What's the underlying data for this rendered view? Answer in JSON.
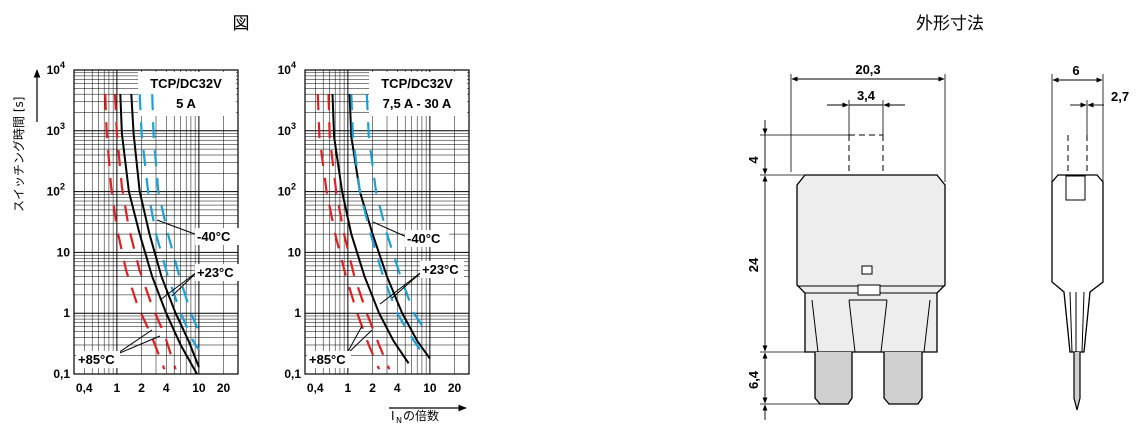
{
  "titles": {
    "left": "図",
    "right": "外形寸法"
  },
  "y_axis_label": "スイッチング時間 [s]",
  "x_axis_label": "の倍数",
  "x_axis_symbol": "I",
  "x_axis_subscript": "N",
  "colors": {
    "cold": "#1aa0d8",
    "warm": "#e02020",
    "normal": "#000000",
    "grid": "#000000"
  },
  "chart_data": [
    {
      "type": "line",
      "title": "TCP/DC32V",
      "subtitle": "5 A",
      "x_scale": "log",
      "y_scale": "log",
      "xlim": [
        0.3,
        30
      ],
      "ylim": [
        0.1,
        10000
      ],
      "x_ticks": [
        "0,4",
        "1",
        "2",
        "4",
        "10",
        "20"
      ],
      "x_tick_values": [
        0.4,
        1,
        2,
        4,
        10,
        20
      ],
      "y_ticks": [
        "0,1",
        "1",
        "10",
        "10^2",
        "10^3",
        "10^4"
      ],
      "y_tick_values": [
        0.1,
        1,
        10,
        100,
        1000,
        10000
      ],
      "annotations": [
        "-40°C",
        "+23°C",
        "+85°C"
      ],
      "series": [
        {
          "name": "+85°C",
          "style": "dashed",
          "color": "#e02020",
          "x": [
            0.72,
            0.75,
            0.85,
            1.0,
            1.3,
            1.8,
            2.6,
            3.8
          ],
          "y": [
            4000,
            1000,
            120,
            25,
            5,
            1.3,
            0.45,
            0.12
          ]
        },
        {
          "name": "+85°C",
          "style": "dashed",
          "color": "#e02020",
          "x": [
            0.95,
            1.0,
            1.15,
            1.4,
            1.9,
            2.7,
            3.8,
            5.2
          ],
          "y": [
            4000,
            900,
            120,
            25,
            5,
            1.3,
            0.45,
            0.12
          ]
        },
        {
          "name": "+23°C",
          "style": "solid",
          "color": "#000000",
          "x": [
            1.1,
            1.15,
            1.4,
            1.9,
            2.7,
            4.0,
            6.0,
            9.5
          ],
          "y": [
            4000,
            900,
            100,
            20,
            4,
            1.0,
            0.3,
            0.1
          ]
        },
        {
          "name": "+23°C",
          "style": "solid",
          "color": "#000000",
          "x": [
            1.5,
            1.6,
            1.9,
            2.5,
            3.5,
            5.2,
            7.5,
            10
          ],
          "y": [
            4000,
            900,
            100,
            20,
            4,
            1.0,
            0.35,
            0.13
          ]
        },
        {
          "name": "-40°C",
          "style": "dashed",
          "color": "#1aa0d8",
          "x": [
            1.9,
            2.0,
            2.4,
            3.0,
            4.2,
            6.0,
            8.5,
            10
          ],
          "y": [
            4000,
            900,
            100,
            20,
            4,
            1.0,
            0.35,
            0.25
          ]
        },
        {
          "name": "-40°C",
          "style": "dashed",
          "color": "#1aa0d8",
          "x": [
            2.7,
            2.8,
            3.2,
            4.2,
            5.8,
            8.0,
            10
          ],
          "y": [
            4000,
            900,
            100,
            20,
            4,
            1.0,
            0.5
          ]
        }
      ]
    },
    {
      "type": "line",
      "title": "TCP/DC32V",
      "subtitle": "7,5 A - 30 A",
      "x_scale": "log",
      "y_scale": "log",
      "xlim": [
        0.3,
        30
      ],
      "ylim": [
        0.1,
        10000
      ],
      "x_ticks": [
        "0,4",
        "1",
        "2",
        "4",
        "10",
        "20"
      ],
      "x_tick_values": [
        0.4,
        1,
        2,
        4,
        10,
        20
      ],
      "y_ticks": [
        "0,1",
        "1",
        "10",
        "10^2",
        "10^3",
        "10^4"
      ],
      "y_tick_values": [
        0.1,
        1,
        10,
        100,
        1000,
        10000
      ],
      "annotations": [
        "-40°C",
        "+23°C",
        "+85°C"
      ],
      "series": [
        {
          "name": "+85°C",
          "style": "dashed",
          "color": "#e02020",
          "x": [
            0.43,
            0.45,
            0.55,
            0.7,
            0.95,
            1.3,
            1.8,
            2.4
          ],
          "y": [
            4000,
            800,
            100,
            20,
            4,
            1.0,
            0.3,
            0.12
          ]
        },
        {
          "name": "+85°C",
          "style": "dashed",
          "color": "#e02020",
          "x": [
            0.58,
            0.6,
            0.72,
            0.9,
            1.2,
            1.7,
            2.4,
            3.2
          ],
          "y": [
            4000,
            800,
            100,
            20,
            4,
            1.0,
            0.3,
            0.12
          ]
        },
        {
          "name": "+23°C",
          "style": "solid",
          "color": "#000000",
          "x": [
            0.65,
            0.68,
            0.85,
            1.1,
            1.6,
            2.4,
            3.6,
            5.5
          ],
          "y": [
            4000,
            800,
            100,
            20,
            4,
            1.0,
            0.35,
            0.15
          ]
        },
        {
          "name": "+23°C",
          "style": "solid",
          "color": "#000000",
          "x": [
            1.05,
            1.1,
            1.4,
            2.0,
            3.0,
            4.6,
            7.0,
            10
          ],
          "y": [
            4000,
            800,
            100,
            20,
            4,
            1.0,
            0.35,
            0.18
          ]
        },
        {
          "name": "-40°C",
          "style": "dashed",
          "color": "#1aa0d8",
          "x": [
            1.1,
            1.15,
            1.4,
            1.9,
            2.7,
            4.0,
            6.0,
            8.5
          ],
          "y": [
            4000,
            800,
            100,
            20,
            4,
            1.0,
            0.4,
            0.2
          ]
        },
        {
          "name": "-40°C",
          "style": "dashed",
          "color": "#1aa0d8",
          "x": [
            1.7,
            1.8,
            2.2,
            3.0,
            4.4,
            6.4,
            9.5
          ],
          "y": [
            4000,
            800,
            100,
            20,
            4,
            1.0,
            0.45
          ]
        }
      ]
    }
  ],
  "dimensions": {
    "front_width": "20,3",
    "terminal_width": "3,4",
    "terminal_top_height": "4",
    "body_height": "24",
    "terminal_bottom_height": "6,4",
    "side_width": "6",
    "side_terminal": "2,7"
  }
}
